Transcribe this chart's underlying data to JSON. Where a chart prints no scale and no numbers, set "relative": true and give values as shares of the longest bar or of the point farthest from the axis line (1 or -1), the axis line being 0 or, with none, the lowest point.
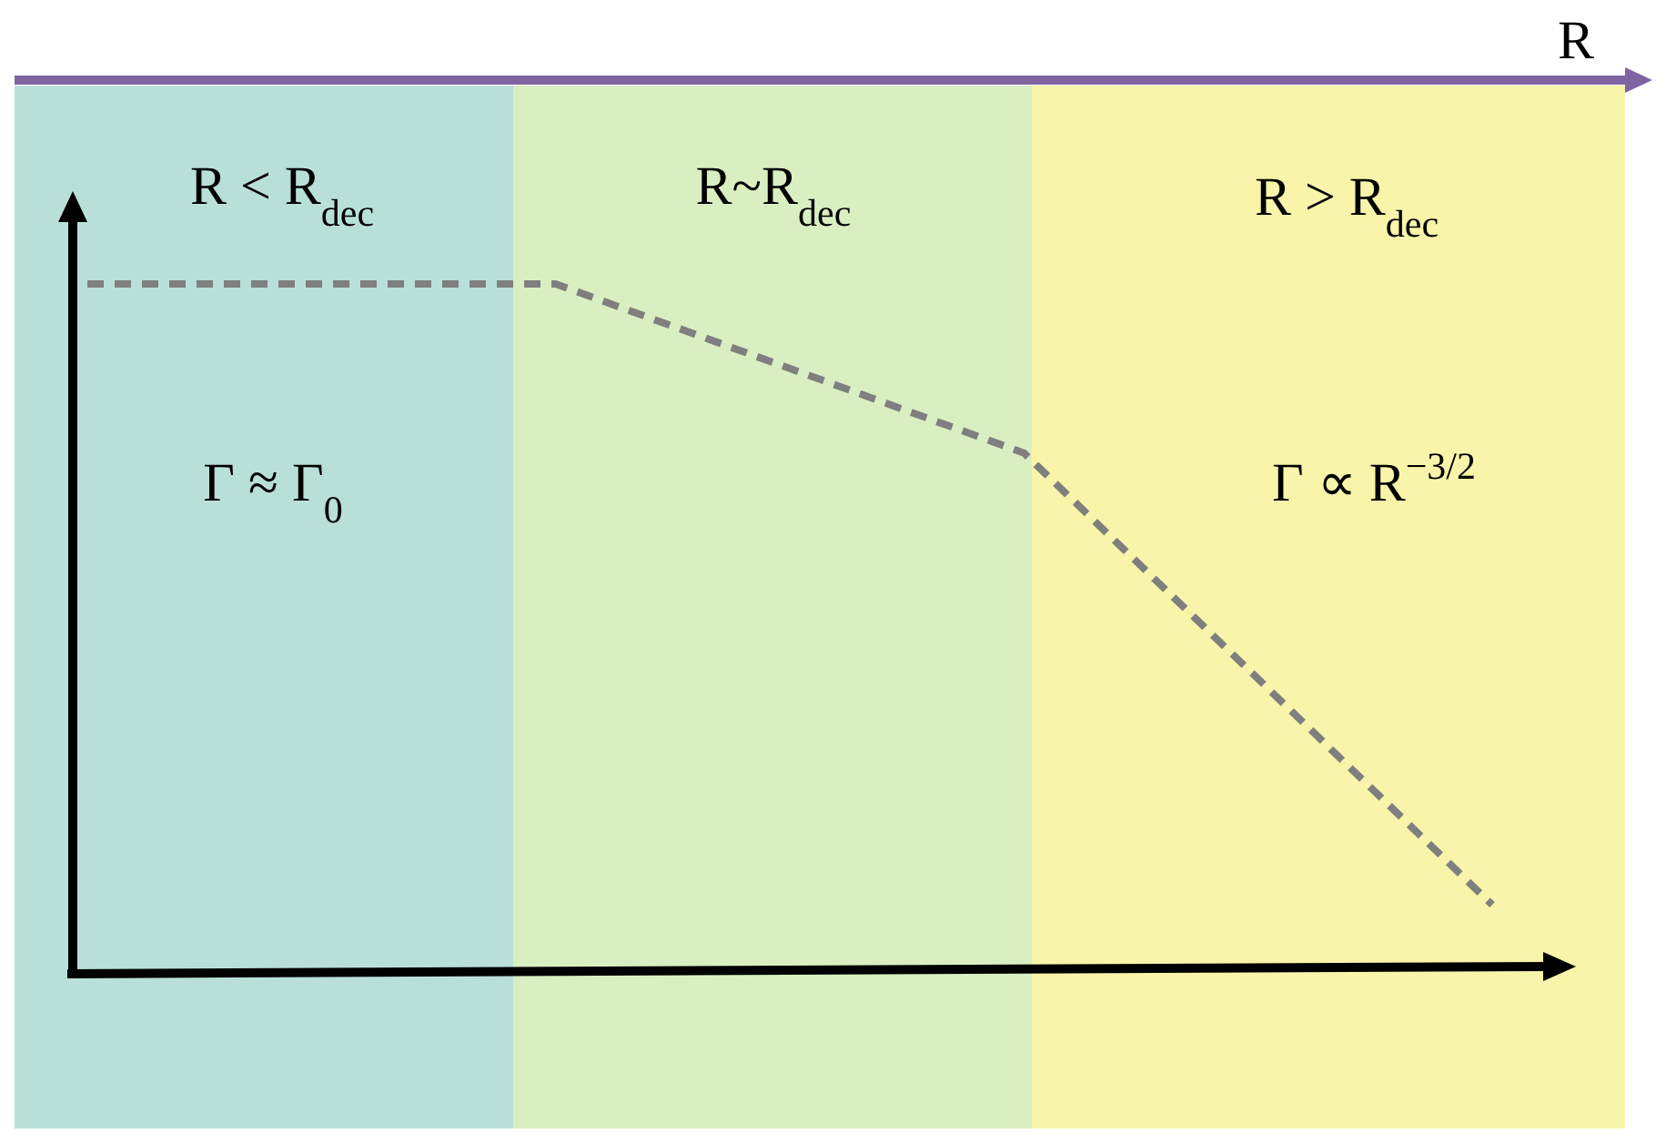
{
  "chart_data": {
    "type": "line",
    "relative": true,
    "xlabel": "R",
    "categories": [
      null,
      null,
      null,
      null
    ],
    "series": [
      {
        "color": "#7f7f7f",
        "values": [
          1,
          1,
          0.755,
          0.1
        ]
      }
    ],
    "line_style": "dashed",
    "annotations": [
      "R < R$_{dec}$",
      "R~R$_{dec}$",
      "R > R$_{dec}$",
      "Γ ≈ Γ$_{0}$",
      "Γ ∝ R$^{−3/2}$"
    ]
  }
}
